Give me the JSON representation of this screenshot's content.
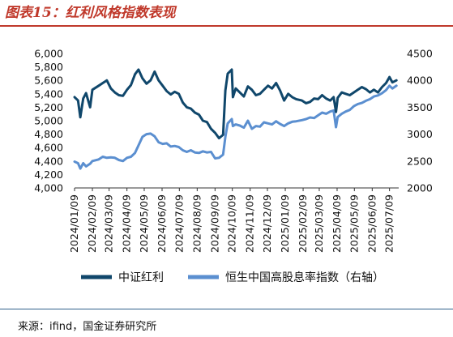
{
  "figure": {
    "title": "图表15：红利风格指数表现",
    "source": "来源：ifind，国金证券研究所"
  },
  "chart_data": {
    "type": "line",
    "title": "",
    "xlabel": "",
    "ylabel": "",
    "x_dates": [
      "2024/01/09",
      "2024/02/09",
      "2024/03/09",
      "2024/04/09",
      "2024/05/09",
      "2024/06/09",
      "2024/07/09",
      "2024/08/09",
      "2024/09/09",
      "2024/10/09",
      "2024/11/09",
      "2024/12/09",
      "2025/01/09",
      "2025/02/09",
      "2025/03/09",
      "2025/04/09",
      "2025/05/09",
      "2025/06/09",
      "2025/07/09"
    ],
    "x_range": [
      "2024/01/09",
      "2025/07/25"
    ],
    "y_left": {
      "ylim": [
        4000,
        6000
      ],
      "ticks": [
        "4,000",
        "4,200",
        "4,400",
        "4,600",
        "4,800",
        "5,000",
        "5,200",
        "5,400",
        "5,600",
        "5,800",
        "6,000"
      ]
    },
    "y_right": {
      "ylim": [
        2000,
        4500
      ],
      "ticks": [
        "2000",
        "2500",
        "3000",
        "3500",
        "4000",
        "4500"
      ]
    },
    "grid": false,
    "legend_position": "bottom",
    "series": [
      {
        "name": "中证红利",
        "axis": "left",
        "color": "#10476b",
        "points": [
          [
            "2024/01/09",
            5350
          ],
          [
            "2024/01/15",
            5300
          ],
          [
            "2024/01/19",
            5050
          ],
          [
            "2024/01/24",
            5330
          ],
          [
            "2024/01/29",
            5410
          ],
          [
            "2024/02/05",
            5200
          ],
          [
            "2024/02/09",
            5460
          ],
          [
            "2024/02/20",
            5520
          ],
          [
            "2024/02/27",
            5560
          ],
          [
            "2024/03/05",
            5600
          ],
          [
            "2024/03/12",
            5480
          ],
          [
            "2024/03/19",
            5420
          ],
          [
            "2024/03/26",
            5380
          ],
          [
            "2024/04/02",
            5370
          ],
          [
            "2024/04/09",
            5460
          ],
          [
            "2024/04/16",
            5530
          ],
          [
            "2024/04/23",
            5690
          ],
          [
            "2024/04/29",
            5760
          ],
          [
            "2024/05/06",
            5630
          ],
          [
            "2024/05/13",
            5550
          ],
          [
            "2024/05/20",
            5600
          ],
          [
            "2024/05/27",
            5730
          ],
          [
            "2024/06/03",
            5600
          ],
          [
            "2024/06/10",
            5520
          ],
          [
            "2024/06/17",
            5440
          ],
          [
            "2024/06/24",
            5390
          ],
          [
            "2024/07/01",
            5430
          ],
          [
            "2024/07/08",
            5400
          ],
          [
            "2024/07/15",
            5270
          ],
          [
            "2024/07/22",
            5200
          ],
          [
            "2024/07/29",
            5180
          ],
          [
            "2024/08/05",
            5120
          ],
          [
            "2024/08/12",
            5090
          ],
          [
            "2024/08/19",
            5000
          ],
          [
            "2024/08/26",
            4980
          ],
          [
            "2024/09/02",
            4880
          ],
          [
            "2024/09/09",
            4820
          ],
          [
            "2024/09/16",
            4740
          ],
          [
            "2024/09/23",
            4790
          ],
          [
            "2024/09/27",
            5450
          ],
          [
            "2024/10/01",
            5700
          ],
          [
            "2024/10/08",
            5760
          ],
          [
            "2024/10/10",
            5350
          ],
          [
            "2024/10/15",
            5480
          ],
          [
            "2024/10/22",
            5420
          ],
          [
            "2024/10/29",
            5360
          ],
          [
            "2024/11/05",
            5510
          ],
          [
            "2024/11/12",
            5460
          ],
          [
            "2024/11/19",
            5380
          ],
          [
            "2024/11/26",
            5400
          ],
          [
            "2024/12/03",
            5460
          ],
          [
            "2024/12/10",
            5520
          ],
          [
            "2024/12/17",
            5480
          ],
          [
            "2024/12/24",
            5560
          ],
          [
            "2024/12/31",
            5450
          ],
          [
            "2025/01/07",
            5300
          ],
          [
            "2025/01/14",
            5400
          ],
          [
            "2025/01/21",
            5350
          ],
          [
            "2025/01/28",
            5320
          ],
          [
            "2025/02/07",
            5300
          ],
          [
            "2025/02/14",
            5260
          ],
          [
            "2025/02/21",
            5280
          ],
          [
            "2025/02/28",
            5330
          ],
          [
            "2025/03/07",
            5320
          ],
          [
            "2025/03/14",
            5380
          ],
          [
            "2025/03/21",
            5330
          ],
          [
            "2025/03/28",
            5300
          ],
          [
            "2025/04/03",
            5350
          ],
          [
            "2025/04/07",
            5130
          ],
          [
            "2025/04/10",
            5340
          ],
          [
            "2025/04/17",
            5420
          ],
          [
            "2025/04/24",
            5400
          ],
          [
            "2025/05/01",
            5380
          ],
          [
            "2025/05/08",
            5420
          ],
          [
            "2025/05/15",
            5460
          ],
          [
            "2025/05/22",
            5500
          ],
          [
            "2025/05/29",
            5470
          ],
          [
            "2025/06/05",
            5420
          ],
          [
            "2025/06/12",
            5460
          ],
          [
            "2025/06/19",
            5420
          ],
          [
            "2025/06/26",
            5500
          ],
          [
            "2025/07/03",
            5560
          ],
          [
            "2025/07/09",
            5650
          ],
          [
            "2025/07/14",
            5570
          ],
          [
            "2025/07/21",
            5600
          ]
        ]
      },
      {
        "name": "恒生中国高股息率指数（右轴）",
        "axis": "right",
        "color": "#5b8fd0",
        "points": [
          [
            "2024/01/09",
            2490
          ],
          [
            "2024/01/15",
            2460
          ],
          [
            "2024/01/19",
            2360
          ],
          [
            "2024/01/24",
            2460
          ],
          [
            "2024/01/29",
            2400
          ],
          [
            "2024/02/05",
            2450
          ],
          [
            "2024/02/09",
            2500
          ],
          [
            "2024/02/20",
            2530
          ],
          [
            "2024/02/27",
            2580
          ],
          [
            "2024/03/05",
            2560
          ],
          [
            "2024/03/12",
            2570
          ],
          [
            "2024/03/19",
            2560
          ],
          [
            "2024/03/26",
            2520
          ],
          [
            "2024/04/02",
            2500
          ],
          [
            "2024/04/09",
            2560
          ],
          [
            "2024/04/16",
            2580
          ],
          [
            "2024/04/23",
            2650
          ],
          [
            "2024/04/29",
            2790
          ],
          [
            "2024/05/06",
            2950
          ],
          [
            "2024/05/13",
            3000
          ],
          [
            "2024/05/20",
            3010
          ],
          [
            "2024/05/27",
            2960
          ],
          [
            "2024/06/03",
            2850
          ],
          [
            "2024/06/10",
            2820
          ],
          [
            "2024/06/17",
            2830
          ],
          [
            "2024/06/24",
            2770
          ],
          [
            "2024/07/01",
            2780
          ],
          [
            "2024/07/08",
            2760
          ],
          [
            "2024/07/15",
            2700
          ],
          [
            "2024/07/22",
            2670
          ],
          [
            "2024/07/29",
            2700
          ],
          [
            "2024/08/05",
            2660
          ],
          [
            "2024/08/12",
            2650
          ],
          [
            "2024/08/19",
            2680
          ],
          [
            "2024/08/26",
            2660
          ],
          [
            "2024/09/02",
            2670
          ],
          [
            "2024/09/09",
            2550
          ],
          [
            "2024/09/16",
            2560
          ],
          [
            "2024/09/23",
            2620
          ],
          [
            "2024/09/27",
            2950
          ],
          [
            "2024/10/01",
            3200
          ],
          [
            "2024/10/08",
            3280
          ],
          [
            "2024/10/10",
            3150
          ],
          [
            "2024/10/15",
            3180
          ],
          [
            "2024/10/22",
            3160
          ],
          [
            "2024/10/29",
            3120
          ],
          [
            "2024/11/05",
            3250
          ],
          [
            "2024/11/12",
            3100
          ],
          [
            "2024/11/19",
            3150
          ],
          [
            "2024/11/26",
            3140
          ],
          [
            "2024/12/03",
            3220
          ],
          [
            "2024/12/10",
            3200
          ],
          [
            "2024/12/17",
            3180
          ],
          [
            "2024/12/24",
            3240
          ],
          [
            "2024/12/31",
            3190
          ],
          [
            "2025/01/07",
            3150
          ],
          [
            "2025/01/14",
            3200
          ],
          [
            "2025/01/21",
            3230
          ],
          [
            "2025/01/28",
            3240
          ],
          [
            "2025/02/07",
            3260
          ],
          [
            "2025/02/14",
            3280
          ],
          [
            "2025/02/21",
            3310
          ],
          [
            "2025/02/28",
            3300
          ],
          [
            "2025/03/07",
            3350
          ],
          [
            "2025/03/14",
            3400
          ],
          [
            "2025/03/21",
            3380
          ],
          [
            "2025/03/28",
            3420
          ],
          [
            "2025/04/03",
            3440
          ],
          [
            "2025/04/07",
            3130
          ],
          [
            "2025/04/10",
            3320
          ],
          [
            "2025/04/17",
            3380
          ],
          [
            "2025/04/24",
            3420
          ],
          [
            "2025/05/01",
            3450
          ],
          [
            "2025/05/08",
            3520
          ],
          [
            "2025/05/15",
            3560
          ],
          [
            "2025/05/22",
            3580
          ],
          [
            "2025/05/29",
            3620
          ],
          [
            "2025/06/05",
            3650
          ],
          [
            "2025/06/12",
            3700
          ],
          [
            "2025/06/19",
            3720
          ],
          [
            "2025/06/26",
            3760
          ],
          [
            "2025/07/03",
            3820
          ],
          [
            "2025/07/09",
            3900
          ],
          [
            "2025/07/14",
            3850
          ],
          [
            "2025/07/21",
            3900
          ]
        ]
      }
    ],
    "legend": [
      {
        "label": "中证红利",
        "color": "#10476b"
      },
      {
        "label": "恒生中国高股息率指数（右轴）",
        "color": "#5b8fd0"
      }
    ]
  }
}
